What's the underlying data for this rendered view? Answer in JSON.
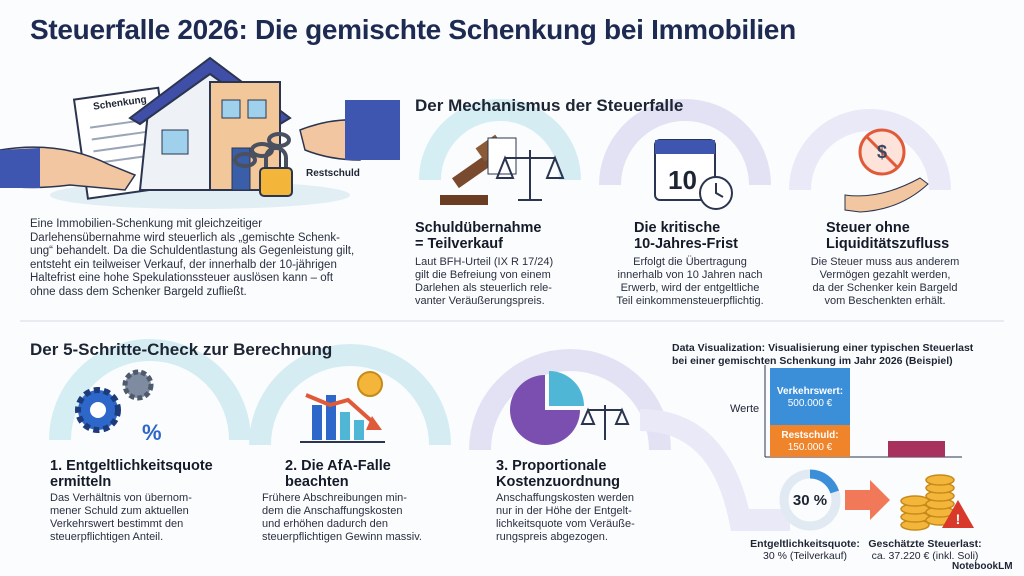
{
  "title": "Steuerfalle 2026: Die gemischte Schenkung bei Immobilien",
  "hero": {
    "document_label": "Schenkung",
    "lock_label": "Restschuld"
  },
  "intro": [
    "Eine Immobilien-Schenkung mit gleichzeitiger",
    "Darlehensübernahme wird steuerlich als „gemischte Schenk-",
    "ung“ behandelt. Da die Schuldentlastung als Gegenleistung gilt,",
    "entsteht ein teilweiser Verkauf, der innerhalb der 10-jährigen",
    "Haltefrist eine hohe Spekulationssteuer auslösen kann – oft",
    "ohne dass dem Schenker Bargeld zufließt."
  ],
  "mechanism": {
    "heading": "Der Mechanismus der Steuerfalle",
    "items": [
      {
        "title": [
          "Schuldübernahme",
          "= Teilverkauf"
        ],
        "body": [
          "Laut BFH-Urteil (IX R 17/24)",
          "gilt die Befreiung von einem",
          "Darlehen als steuerlich rele-",
          "vanter Veräußerungspreis."
        ]
      },
      {
        "icon_text": "10",
        "title": [
          "Die kritische",
          "10-Jahres-Frist"
        ],
        "body": [
          "Erfolgt die Übertragung",
          "innerhalb von 10 Jahren nach",
          "Erwerb, wird der entgeltliche",
          "Teil einkommensteuerpflichtig."
        ]
      },
      {
        "title": [
          "Steuer ohne",
          "Liquiditätszufluss"
        ],
        "body": [
          "Die Steuer muss aus anderem",
          "Vermögen gezahlt werden,",
          "da der Schenker kein Bargeld",
          "vom Beschenkten erhält."
        ]
      }
    ]
  },
  "steps": {
    "heading": "Der 5-Schritte-Check zur Berechnung",
    "items": [
      {
        "title": [
          "1. Entgeltlichkeitsquote",
          "ermitteln"
        ],
        "body": [
          "Das Verhältnis von übernom-",
          "mener Schuld zum aktuellen",
          "Verkehrswert bestimmt den",
          "steuerpflichtigen Anteil."
        ]
      },
      {
        "title": [
          "2. Die AfA-Falle",
          "beachten"
        ],
        "body": [
          "Frühere Abschreibungen min-",
          "dem die Anschaffungskosten",
          "und erhöhen dadurch den",
          "steuerpflichtigen Gewinn massiv."
        ]
      },
      {
        "title": [
          "3. Proportionale",
          "Kostenzuordnung"
        ],
        "body": [
          "Anschaffungskosten werden",
          "nur in der Höhe der Entgelt-",
          "lichkeitsquote vom Veräuße-",
          "rungspreis abgezogen."
        ]
      }
    ]
  },
  "visual": {
    "title": [
      "Data Visualization: Visualisierung einer typischen Steuerlast",
      "bei einer gemischten Schenkung im Jahr 2026 (Beispiel)"
    ],
    "axis_label": "Werte",
    "market_value": [
      "Verkehrswert:",
      "500.000 €"
    ],
    "debt": [
      "Restschuld:",
      "150.000 €"
    ],
    "ratio": "30 %",
    "ratio_caption": [
      "Entgeltlichkeitsquote:",
      "30 % (Teilverkauf)"
    ],
    "tax_caption": [
      "Geschätzte Steuerlast:",
      "ca. 37.220 € (inkl. Soli)"
    ]
  },
  "footer": "NotebookLM"
}
